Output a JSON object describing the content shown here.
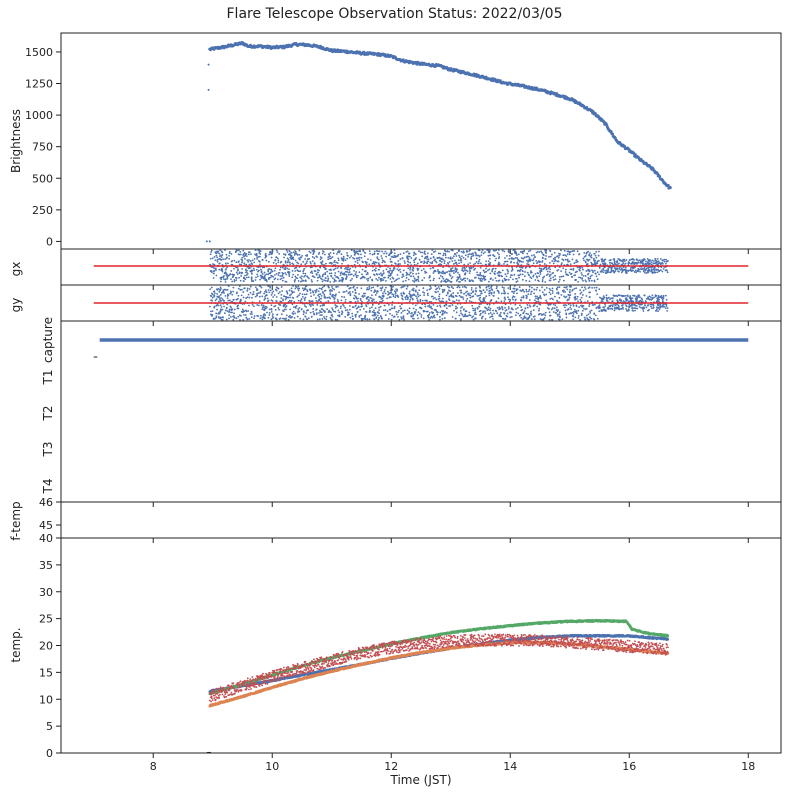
{
  "title": "Flare Telescope Observation Status: 2022/03/05",
  "colors": {
    "blue": "#4c72b0",
    "orange": "#dd8452",
    "green": "#55a868",
    "red": "#c44e52",
    "guide": "#e0242a"
  },
  "chart_data": [
    {
      "type": "scatter",
      "ylabel": "Brightness",
      "xlim": [
        6.45,
        18.55
      ],
      "ylim": [
        -60,
        1650
      ],
      "yticks": [
        0,
        250,
        500,
        750,
        1000,
        1250,
        1500
      ],
      "series": [
        {
          "color": "#4c72b0",
          "points": [
            [
              8.9,
              0
            ],
            [
              8.95,
              0
            ],
            [
              8.93,
              1400
            ],
            [
              8.93,
              1200
            ],
            [
              8.95,
              1520
            ],
            [
              9.0,
              1525
            ],
            [
              9.2,
              1540
            ],
            [
              9.4,
              1560
            ],
            [
              9.5,
              1570
            ],
            [
              9.6,
              1545
            ],
            [
              9.8,
              1545
            ],
            [
              10.0,
              1535
            ],
            [
              10.2,
              1540
            ],
            [
              10.4,
              1560
            ],
            [
              10.6,
              1555
            ],
            [
              10.8,
              1540
            ],
            [
              11.0,
              1510
            ],
            [
              11.2,
              1505
            ],
            [
              11.5,
              1490
            ],
            [
              11.8,
              1480
            ],
            [
              12.0,
              1465
            ],
            [
              12.2,
              1430
            ],
            [
              12.5,
              1405
            ],
            [
              12.8,
              1390
            ],
            [
              13.0,
              1360
            ],
            [
              13.3,
              1330
            ],
            [
              13.6,
              1295
            ],
            [
              13.9,
              1255
            ],
            [
              14.2,
              1230
            ],
            [
              14.5,
              1200
            ],
            [
              14.8,
              1160
            ],
            [
              15.0,
              1130
            ],
            [
              15.2,
              1080
            ],
            [
              15.4,
              1020
            ],
            [
              15.6,
              930
            ],
            [
              15.8,
              790
            ],
            [
              16.0,
              720
            ],
            [
              16.2,
              640
            ],
            [
              16.4,
              570
            ],
            [
              16.6,
              460
            ],
            [
              16.7,
              415
            ]
          ]
        }
      ]
    },
    {
      "type": "scatter",
      "ylabel": "gx",
      "xlim": [
        6.45,
        18.55
      ],
      "reference_line": {
        "x": [
          7.0,
          18.0
        ],
        "color": "#e0242a"
      },
      "x_range": [
        8.95,
        16.65
      ]
    },
    {
      "type": "scatter",
      "ylabel": "gy",
      "xlim": [
        6.45,
        18.55
      ],
      "reference_line": {
        "x": [
          7.0,
          18.0
        ],
        "color": "#e0242a"
      },
      "x_range": [
        8.95,
        16.65
      ]
    },
    {
      "type": "line",
      "xlim": [
        6.45,
        18.55
      ],
      "categories": [
        "capture",
        "T1",
        "T2",
        "T3",
        "T4"
      ],
      "series": [
        {
          "category": "capture",
          "x": [
            7.1,
            18.0
          ],
          "color": "#4c72b0"
        }
      ]
    },
    {
      "type": "scatter",
      "ylabel": "f-temp",
      "xlim": [
        6.45,
        18.55
      ],
      "ylim": [
        40,
        46
      ],
      "yticks": [
        "40",
        "45",
        "46"
      ]
    },
    {
      "type": "scatter",
      "xlabel": "Time (JST)",
      "ylabel": "temp.",
      "xlim": [
        6.45,
        18.55
      ],
      "ylim": [
        0,
        40
      ],
      "yticks": [
        0,
        5,
        10,
        15,
        20,
        25,
        30,
        35
      ],
      "xticks": [
        8,
        10,
        12,
        14,
        16,
        18
      ],
      "series": [
        {
          "color": "#4c72b0",
          "x": [
            8.95,
            9.5,
            10,
            10.5,
            11,
            11.5,
            12,
            12.5,
            13,
            13.5,
            14,
            14.5,
            15,
            15.5,
            16,
            16.3,
            16.65
          ],
          "y": [
            11.5,
            12.5,
            13.5,
            14.5,
            15.5,
            16.5,
            17.6,
            18.6,
            19.5,
            20.3,
            21,
            21.5,
            21.8,
            21.8,
            21.8,
            21.5,
            21.2
          ]
        },
        {
          "color": "#dd8452",
          "x": [
            8.95,
            9.5,
            10,
            10.5,
            11,
            11.5,
            12,
            12.5,
            13,
            13.5,
            14,
            14.5,
            15,
            15.5,
            16,
            16.3,
            16.65
          ],
          "y": [
            8.8,
            10.5,
            12.2,
            13.8,
            15.2,
            16.5,
            17.7,
            18.7,
            19.5,
            20.1,
            20.5,
            20.6,
            20.3,
            19.8,
            19.3,
            18.9,
            18.5
          ]
        },
        {
          "color": "#55a868",
          "x": [
            8.95,
            9.5,
            10,
            10.5,
            11,
            11.5,
            12,
            12.5,
            13,
            13.5,
            14,
            14.5,
            15,
            15.5,
            15.95,
            16.05,
            16.3,
            16.65
          ],
          "y": [
            11,
            12.8,
            14.5,
            16.2,
            17.7,
            19,
            20.3,
            21.4,
            22.4,
            23.1,
            23.7,
            24.2,
            24.5,
            24.6,
            24.5,
            23,
            22.3,
            21.8
          ]
        },
        {
          "color": "#c44e52",
          "x": [
            8.95,
            9.5,
            10,
            10.5,
            11,
            11.5,
            12,
            12.5,
            13,
            13.5,
            14,
            14.5,
            15,
            15.5,
            16,
            16.3,
            16.65
          ],
          "y": [
            10.5,
            12.5,
            14.2,
            15.8,
            17.2,
            18.6,
            19.6,
            20.3,
            20.8,
            21,
            21,
            20.9,
            20.6,
            20.2,
            19.8,
            19.5,
            19.2
          ]
        }
      ]
    }
  ]
}
